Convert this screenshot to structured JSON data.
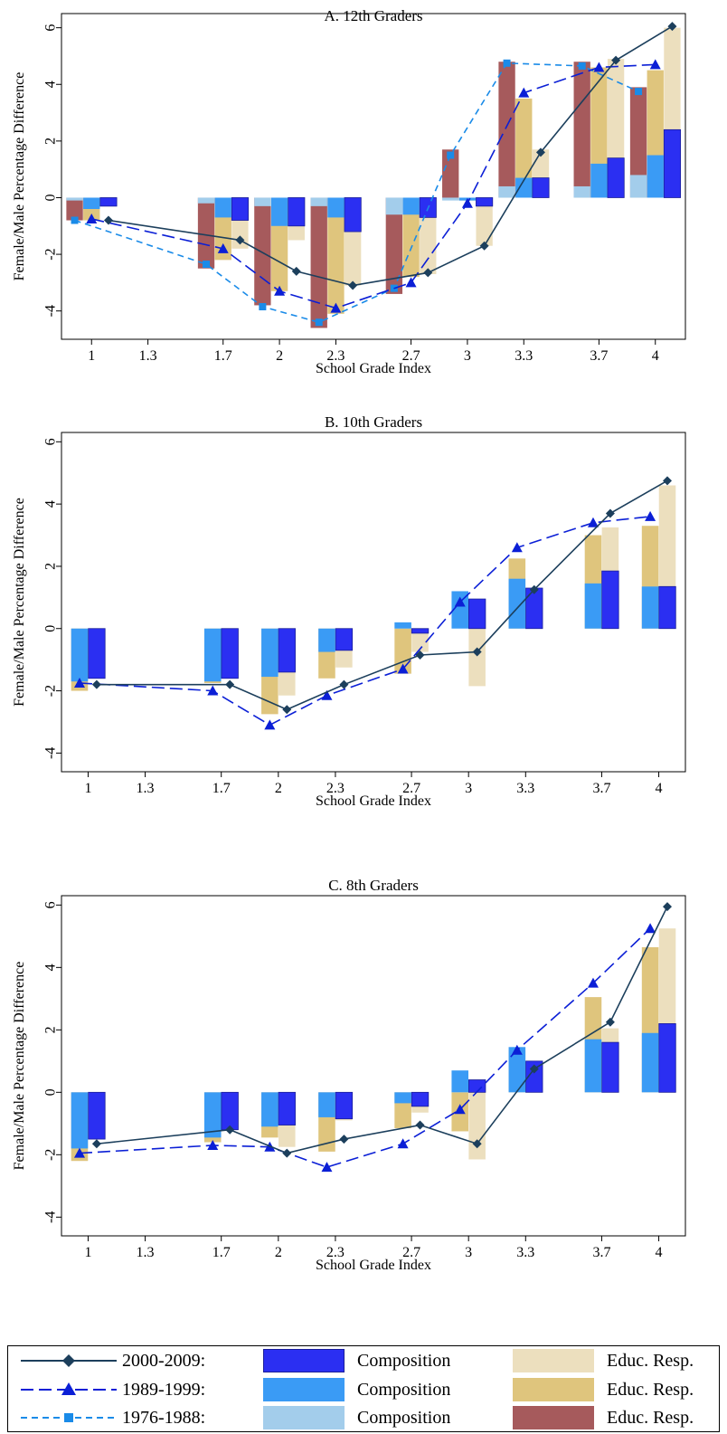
{
  "chart_data": [
    {
      "type": "bar",
      "title": "A. 12th Graders",
      "xlabel": "School Grade Index",
      "ylabel": "Female/Male Percentage Difference",
      "ylim": [
        -5,
        6.5
      ],
      "yticks": [
        -4,
        -2,
        0,
        2,
        4,
        6
      ],
      "xticks": [
        "1",
        "1.3",
        "1.7",
        "2",
        "2.3",
        "2.7",
        "3",
        "3.3",
        "3.7",
        "4"
      ],
      "xlim": [
        0.84,
        4.16
      ],
      "grid": false,
      "composition": {
        "2000-2009": [
          [
            1,
            -0.3
          ],
          [
            1.7,
            -0.8
          ],
          [
            2,
            -1.0
          ],
          [
            2.3,
            -1.2
          ],
          [
            2.7,
            -0.7
          ],
          [
            3,
            -0.3
          ],
          [
            3.3,
            0.7
          ],
          [
            3.7,
            1.4
          ],
          [
            4,
            2.4
          ]
        ],
        "1989-1999": [
          [
            1,
            -0.4
          ],
          [
            1.7,
            -0.7
          ],
          [
            2,
            -1.0
          ],
          [
            2.3,
            -0.7
          ],
          [
            2.7,
            -0.6
          ],
          [
            3,
            -0.1
          ],
          [
            3.3,
            0.7
          ],
          [
            3.7,
            1.2
          ],
          [
            4,
            1.5
          ]
        ],
        "1976-1988": [
          [
            1,
            -0.1
          ],
          [
            1.7,
            -0.2
          ],
          [
            2,
            -0.3
          ],
          [
            2.3,
            -0.3
          ],
          [
            2.7,
            -0.6
          ],
          [
            3,
            -0.1
          ],
          [
            3.3,
            0.4
          ],
          [
            3.7,
            0.4
          ],
          [
            4,
            0.8
          ]
        ]
      },
      "educ_resp": {
        "2000-2009": [
          [
            1,
            0
          ],
          [
            1.7,
            -1.8
          ],
          [
            2,
            -1.5
          ],
          [
            2.3,
            -3.1
          ],
          [
            2.7,
            -2.7
          ],
          [
            3,
            -1.7
          ],
          [
            3.3,
            1.7
          ],
          [
            3.7,
            4.9
          ],
          [
            4,
            6.0
          ]
        ],
        "1989-1999": [
          [
            1,
            -0.8
          ],
          [
            1.7,
            -2.2
          ],
          [
            2,
            -3.3
          ],
          [
            2.3,
            -4.1
          ],
          [
            2.7,
            -2.8
          ],
          [
            3,
            -0.1
          ],
          [
            3.3,
            3.5
          ],
          [
            3.7,
            4.6
          ],
          [
            4,
            4.5
          ]
        ],
        "1976-1988": [
          [
            1,
            -0.8
          ],
          [
            1.7,
            -2.5
          ],
          [
            2,
            -3.8
          ],
          [
            2.3,
            -4.6
          ],
          [
            2.7,
            -3.4
          ],
          [
            3,
            1.7
          ],
          [
            3.3,
            4.8
          ],
          [
            3.7,
            4.8
          ],
          [
            4,
            3.9
          ]
        ]
      },
      "series": [
        {
          "name": "2000-2009",
          "x": [
            1,
            1.7,
            2,
            2.3,
            2.7,
            3,
            3.3,
            3.7,
            4
          ],
          "y": [
            -0.8,
            -1.5,
            -2.6,
            -3.1,
            -2.65,
            -1.7,
            1.6,
            4.85,
            6.05
          ]
        },
        {
          "name": "1989-1999",
          "x": [
            1,
            1.7,
            2,
            2.3,
            2.7,
            3,
            3.3,
            3.7,
            4
          ],
          "y": [
            -0.75,
            -1.8,
            -3.3,
            -3.9,
            -3.0,
            -0.2,
            3.7,
            4.6,
            4.7
          ]
        },
        {
          "name": "1976-1988",
          "x": [
            1,
            1.7,
            2,
            2.3,
            2.7,
            3,
            3.3,
            3.7,
            4
          ],
          "y": [
            -0.8,
            -2.35,
            -3.85,
            -4.4,
            -3.2,
            1.5,
            4.75,
            4.65,
            3.75
          ]
        }
      ]
    },
    {
      "type": "bar",
      "title": "B. 10th Graders",
      "xlabel": "School Grade Index",
      "ylabel": "Female/Male Percentage Difference",
      "ylim": [
        -4.6,
        6.3
      ],
      "yticks": [
        -4,
        -2,
        0,
        2,
        4,
        6
      ],
      "xticks": [
        "1",
        "1.3",
        "1.7",
        "2",
        "2.3",
        "2.7",
        "3",
        "3.3",
        "3.7",
        "4"
      ],
      "xlim": [
        0.86,
        4.14
      ],
      "grid": false,
      "composition": {
        "2000-2009": [
          [
            1,
            -1.6
          ],
          [
            1.7,
            -1.6
          ],
          [
            2,
            -1.4
          ],
          [
            2.3,
            -0.7
          ],
          [
            2.7,
            -0.15
          ],
          [
            3,
            0.95
          ],
          [
            3.3,
            1.3
          ],
          [
            3.7,
            1.85
          ],
          [
            4,
            1.35
          ]
        ],
        "1989-1999": [
          [
            1,
            -1.7
          ],
          [
            1.7,
            -1.7
          ],
          [
            2,
            -1.55
          ],
          [
            2.3,
            -0.75
          ],
          [
            2.7,
            0.2
          ],
          [
            3,
            1.2
          ],
          [
            3.3,
            1.6
          ],
          [
            3.7,
            1.45
          ],
          [
            4,
            1.35
          ]
        ]
      },
      "educ_resp": {
        "2000-2009": [
          [
            1,
            0
          ],
          [
            1.7,
            0
          ],
          [
            2,
            -2.15
          ],
          [
            2.3,
            -1.25
          ],
          [
            2.7,
            -0.75
          ],
          [
            3,
            -1.85
          ],
          [
            3.3,
            1.25
          ],
          [
            3.7,
            3.25
          ],
          [
            4,
            4.6
          ]
        ],
        "1989-1999": [
          [
            1,
            -2.0
          ],
          [
            1.7,
            -1.75
          ],
          [
            2,
            -2.75
          ],
          [
            2.3,
            -1.6
          ],
          [
            2.7,
            -1.45
          ],
          [
            3,
            0
          ],
          [
            3.3,
            2.25
          ],
          [
            3.7,
            3.0
          ],
          [
            4,
            3.3
          ]
        ]
      },
      "series": [
        {
          "name": "2000-2009",
          "x": [
            1,
            1.7,
            2,
            2.3,
            2.7,
            3,
            3.3,
            3.7,
            4
          ],
          "y": [
            -1.8,
            -1.8,
            -2.6,
            -1.8,
            -0.85,
            -0.75,
            1.25,
            3.7,
            4.75
          ]
        },
        {
          "name": "1989-1999",
          "x": [
            1,
            1.7,
            2,
            2.3,
            2.7,
            3,
            3.3,
            3.7,
            4
          ],
          "y": [
            -1.75,
            -2.0,
            -3.1,
            -2.15,
            -1.3,
            0.85,
            2.6,
            3.4,
            3.6
          ]
        }
      ]
    },
    {
      "type": "bar",
      "title": "C. 8th Graders",
      "xlabel": "School Grade Index",
      "ylabel": "Female/Male Percentage Difference",
      "ylim": [
        -4.6,
        6.3
      ],
      "yticks": [
        -4,
        -2,
        0,
        2,
        4,
        6
      ],
      "xticks": [
        "1",
        "1.3",
        "1.7",
        "2",
        "2.3",
        "2.7",
        "3",
        "3.3",
        "3.7",
        "4"
      ],
      "xlim": [
        0.86,
        4.14
      ],
      "grid": false,
      "composition": {
        "2000-2009": [
          [
            1,
            -1.5
          ],
          [
            1.7,
            -1.2
          ],
          [
            2,
            -1.05
          ],
          [
            2.3,
            -0.85
          ],
          [
            2.7,
            -0.45
          ],
          [
            3,
            0.4
          ],
          [
            3.3,
            1.0
          ],
          [
            3.7,
            1.6
          ],
          [
            4,
            2.2
          ]
        ],
        "1989-1999": [
          [
            1,
            -1.8
          ],
          [
            1.7,
            -1.45
          ],
          [
            2,
            -1.1
          ],
          [
            2.3,
            -0.8
          ],
          [
            2.7,
            -0.35
          ],
          [
            3,
            0.7
          ],
          [
            3.3,
            1.45
          ],
          [
            3.7,
            1.7
          ],
          [
            4,
            1.9
          ]
        ]
      },
      "educ_resp": {
        "2000-2009": [
          [
            1,
            0
          ],
          [
            1.7,
            -1.15
          ],
          [
            2,
            -1.75
          ],
          [
            2.3,
            -0.9
          ],
          [
            2.7,
            -0.65
          ],
          [
            3,
            -2.15
          ],
          [
            3.3,
            0.8
          ],
          [
            3.7,
            2.05
          ],
          [
            4,
            5.25
          ]
        ],
        "1989-1999": [
          [
            1,
            -2.2
          ],
          [
            1.7,
            -1.6
          ],
          [
            2,
            -1.45
          ],
          [
            2.3,
            -1.9
          ],
          [
            2.7,
            -1.15
          ],
          [
            3,
            -1.25
          ],
          [
            3.3,
            1.35
          ],
          [
            3.7,
            3.05
          ],
          [
            4,
            4.65
          ]
        ]
      },
      "series": [
        {
          "name": "2000-2009",
          "x": [
            1,
            1.7,
            2,
            2.3,
            2.7,
            3,
            3.3,
            3.7,
            4
          ],
          "y": [
            -1.65,
            -1.2,
            -1.95,
            -1.5,
            -1.05,
            -1.65,
            0.75,
            2.25,
            5.95
          ]
        },
        {
          "name": "1989-1999",
          "x": [
            1,
            1.7,
            2,
            2.3,
            2.7,
            3,
            3.3,
            3.7,
            4
          ],
          "y": [
            -1.95,
            -1.7,
            -1.75,
            -2.4,
            -1.65,
            -0.55,
            1.35,
            3.5,
            5.25
          ]
        }
      ]
    }
  ],
  "legend": {
    "rows": [
      {
        "period": "2000-2009:",
        "comp_label": "Composition",
        "educ_label": "Educ. Resp."
      },
      {
        "period": "1989-1999:",
        "comp_label": "Composition",
        "educ_label": "Educ. Resp."
      },
      {
        "period": "1976-1988:",
        "comp_label": "Composition",
        "educ_label": "Educ. Resp."
      }
    ]
  },
  "colors": {
    "comp_2000": "#2b2ff2",
    "comp_1989": "#3a9bf5",
    "comp_1976": "#a3cdeb",
    "educ_2000": "#ecdfbe",
    "educ_1989": "#dfc57d",
    "educ_1976": "#a65a5c",
    "line_2000": "#1c3f5c",
    "line_1989": "#0b1fd6",
    "line_1976": "#1a8be8"
  }
}
